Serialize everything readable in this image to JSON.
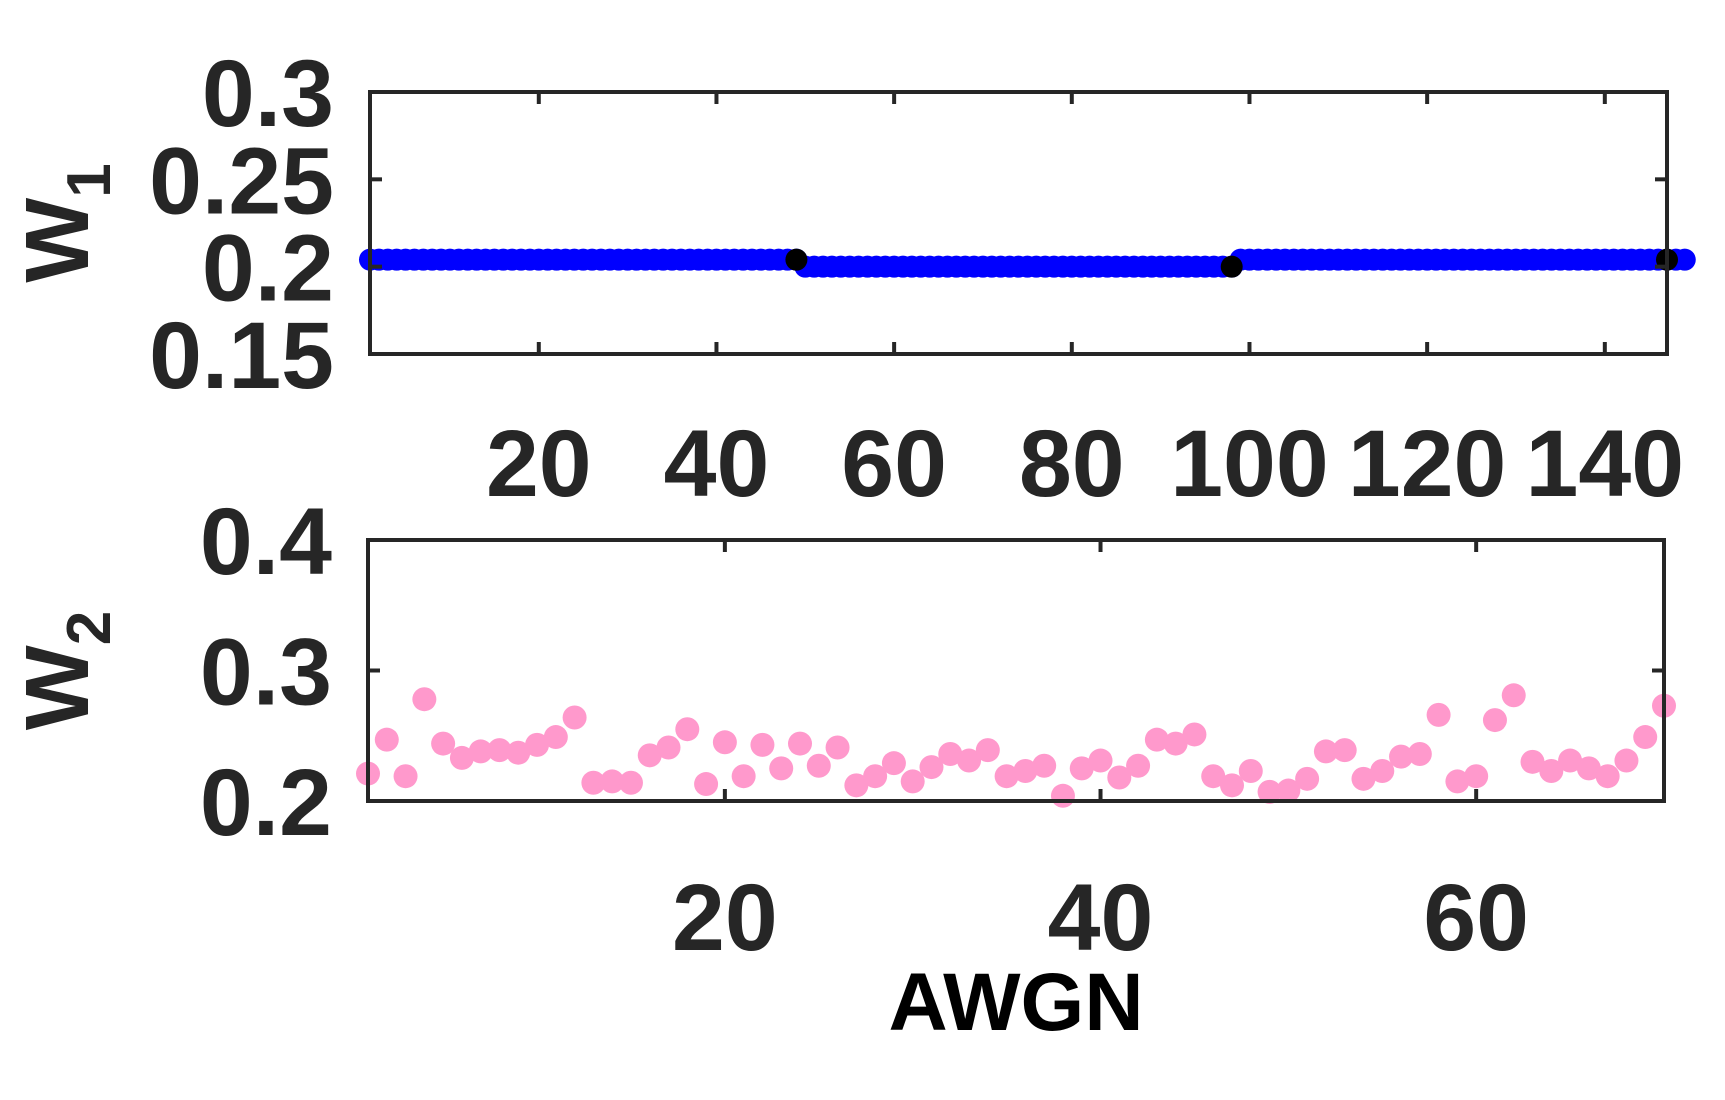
{
  "chart_data": [
    {
      "type": "scatter",
      "ylabel": {
        "text": "W",
        "sub": "1"
      },
      "xlim": [
        1,
        147
      ],
      "xticks": [
        20,
        40,
        60,
        80,
        100,
        120,
        140
      ],
      "ylim": [
        0.15,
        0.3
      ],
      "yticks": [
        0.15,
        0.2,
        0.25,
        0.3
      ],
      "x_from": 1,
      "series": [
        {
          "color": "#0000ff",
          "values": [
            0.204,
            0.204,
            0.204,
            0.204,
            0.204,
            0.204,
            0.204,
            0.204,
            0.204,
            0.204,
            0.204,
            0.204,
            0.204,
            0.204,
            0.204,
            0.204,
            0.204,
            0.204,
            0.204,
            0.204,
            0.204,
            0.204,
            0.204,
            0.204,
            0.204,
            0.204,
            0.204,
            0.204,
            0.204,
            0.204,
            0.204,
            0.204,
            0.204,
            0.204,
            0.204,
            0.204,
            0.204,
            0.204,
            0.204,
            0.204,
            0.204,
            0.204,
            0.204,
            0.204,
            0.204,
            0.204,
            0.204,
            0.204,
            0.204,
            0.2,
            0.2,
            0.2,
            0.2,
            0.2,
            0.2,
            0.2,
            0.2,
            0.2,
            0.2,
            0.2,
            0.2,
            0.2,
            0.2,
            0.2,
            0.2,
            0.2,
            0.2,
            0.2,
            0.2,
            0.2,
            0.2,
            0.2,
            0.2,
            0.2,
            0.2,
            0.2,
            0.2,
            0.2,
            0.2,
            0.2,
            0.2,
            0.2,
            0.2,
            0.2,
            0.2,
            0.2,
            0.2,
            0.2,
            0.2,
            0.2,
            0.2,
            0.2,
            0.2,
            0.2,
            0.2,
            0.2,
            0.2,
            0.2,
            0.204,
            0.204,
            0.204,
            0.204,
            0.204,
            0.204,
            0.204,
            0.204,
            0.204,
            0.204,
            0.204,
            0.204,
            0.204,
            0.204,
            0.204,
            0.204,
            0.204,
            0.204,
            0.204,
            0.204,
            0.204,
            0.204,
            0.204,
            0.204,
            0.204,
            0.204,
            0.204,
            0.204,
            0.204,
            0.204,
            0.204,
            0.204,
            0.204,
            0.204,
            0.204,
            0.204,
            0.204,
            0.204,
            0.204,
            0.204,
            0.204,
            0.204,
            0.204,
            0.204,
            0.204,
            0.204,
            0.204,
            0.204,
            0.204,
            0.204,
            0.204
          ]
        },
        {
          "color": "#000000",
          "values": [
            null,
            null,
            null,
            null,
            null,
            null,
            null,
            null,
            null,
            null,
            null,
            null,
            null,
            null,
            null,
            null,
            null,
            null,
            null,
            null,
            null,
            null,
            null,
            null,
            null,
            null,
            null,
            null,
            null,
            null,
            null,
            null,
            null,
            null,
            null,
            null,
            null,
            null,
            null,
            null,
            null,
            null,
            null,
            null,
            null,
            null,
            null,
            null,
            0.204,
            null,
            null,
            null,
            null,
            null,
            null,
            null,
            null,
            null,
            null,
            null,
            null,
            null,
            null,
            null,
            null,
            null,
            null,
            null,
            null,
            null,
            null,
            null,
            null,
            null,
            null,
            null,
            null,
            null,
            null,
            null,
            null,
            null,
            null,
            null,
            null,
            null,
            null,
            null,
            null,
            null,
            null,
            null,
            null,
            null,
            null,
            null,
            null,
            0.2,
            null,
            null,
            null,
            null,
            null,
            null,
            null,
            null,
            null,
            null,
            null,
            null,
            null,
            null,
            null,
            null,
            null,
            null,
            null,
            null,
            null,
            null,
            null,
            null,
            null,
            null,
            null,
            null,
            null,
            null,
            null,
            null,
            null,
            null,
            null,
            null,
            null,
            null,
            null,
            null,
            null,
            null,
            null,
            null,
            null,
            null,
            null,
            null,
            0.204
          ]
        }
      ]
    },
    {
      "type": "scatter",
      "ylabel": {
        "text": "W",
        "sub": "2"
      },
      "xlabel": "AWGN",
      "xlim": [
        1,
        70
      ],
      "xticks": [
        20,
        40,
        60
      ],
      "ylim": [
        0.2,
        0.4
      ],
      "yticks": [
        0.2,
        0.3,
        0.4
      ],
      "x_from": 1,
      "series": [
        {
          "color": "#ff99cc",
          "values": [
            0.221,
            0.247,
            0.219,
            0.278,
            0.244,
            0.233,
            0.238,
            0.239,
            0.237,
            0.243,
            0.249,
            0.264,
            0.214,
            0.215,
            0.214,
            0.235,
            0.241,
            0.255,
            0.213,
            0.245,
            0.219,
            0.243,
            0.225,
            0.244,
            0.227,
            0.241,
            0.212,
            0.219,
            0.229,
            0.215,
            0.226,
            0.236,
            0.231,
            0.239,
            0.219,
            0.223,
            0.227,
            0.204,
            0.225,
            0.231,
            0.218,
            0.227,
            0.247,
            0.244,
            0.251,
            0.219,
            0.212,
            0.223,
            0.207,
            0.208,
            0.217,
            0.238,
            0.239,
            0.217,
            0.223,
            0.234,
            0.236,
            0.266,
            0.215,
            0.219,
            0.262,
            0.281,
            0.23,
            0.223,
            0.231,
            0.225,
            0.219,
            0.231,
            0.249,
            0.273
          ]
        }
      ]
    }
  ]
}
